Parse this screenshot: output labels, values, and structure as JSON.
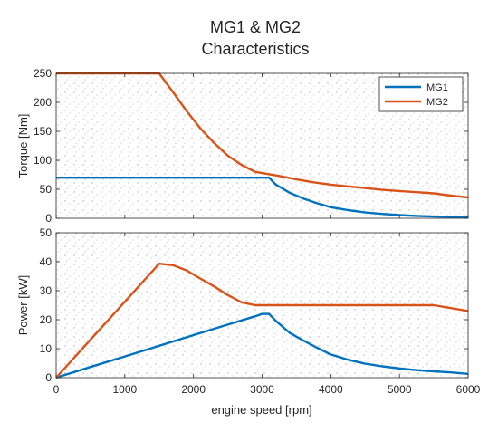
{
  "figure": {
    "title_line1": "MG1 & MG2",
    "title_line2": "Characteristics",
    "xlabel": "engine speed [rpm]"
  },
  "colors": {
    "mg1": "#0072BD",
    "mg2": "#D95319",
    "axis": "#262626",
    "dots": "#a8a8a8"
  },
  "chart_data": [
    {
      "type": "line",
      "ylabel": "Torque [Nm]",
      "xlim": [
        0,
        6000
      ],
      "ylim": [
        0,
        250
      ],
      "yticks": [
        "0",
        "50",
        "100",
        "150",
        "200",
        "250"
      ],
      "xticks": [],
      "legend": "top-right",
      "grid": false,
      "series": [
        {
          "name": "MG1",
          "color": "#0072BD",
          "x": [
            0,
            1000,
            2000,
            3000,
            3100,
            3200,
            3400,
            3600,
            3800,
            4000,
            4250,
            4500,
            4750,
            5000,
            5250,
            5500,
            5750,
            6000
          ],
          "y": [
            70,
            70,
            70,
            70,
            70,
            58,
            44,
            34,
            26,
            19,
            14,
            10,
            7.5,
            5.5,
            4,
            3,
            2.5,
            2
          ]
        },
        {
          "name": "MG2",
          "color": "#D95319",
          "x": [
            0,
            1000,
            1500,
            1700,
            1900,
            2100,
            2300,
            2500,
            2700,
            2900,
            3000,
            3250,
            3500,
            3750,
            4000,
            4250,
            4500,
            4750,
            5000,
            5250,
            5500,
            5750,
            6000
          ],
          "y": [
            250,
            250,
            250,
            218,
            185,
            155,
            130,
            108,
            92,
            80,
            78,
            73,
            67,
            62,
            58,
            55,
            52,
            49,
            47,
            45,
            43,
            39,
            36
          ]
        }
      ]
    },
    {
      "type": "line",
      "ylabel": "Power [kW]",
      "xlabel": "engine speed [rpm]",
      "xlim": [
        0,
        6000
      ],
      "ylim": [
        0,
        50
      ],
      "yticks": [
        "0",
        "10",
        "20",
        "30",
        "40",
        "50"
      ],
      "xticks": [
        "0",
        "1000",
        "2000",
        "3000",
        "4000",
        "5000",
        "6000"
      ],
      "grid": false,
      "series": [
        {
          "name": "MG1",
          "color": "#0072BD",
          "x": [
            0,
            500,
            1000,
            1500,
            2000,
            2500,
            2900,
            3000,
            3100,
            3200,
            3400,
            3600,
            3800,
            4000,
            4250,
            4500,
            4750,
            5000,
            5250,
            5500,
            5750,
            6000
          ],
          "y": [
            0,
            3.7,
            7.3,
            11,
            14.7,
            18.3,
            21.2,
            22,
            22,
            19.6,
            15.5,
            12.8,
            10.3,
            8,
            6.2,
            4.8,
            3.9,
            3.2,
            2.6,
            2.2,
            1.8,
            1.3
          ]
        },
        {
          "name": "MG2",
          "color": "#D95319",
          "x": [
            0,
            500,
            1000,
            1500,
            1700,
            1900,
            2100,
            2300,
            2500,
            2700,
            2900,
            3000,
            3500,
            4000,
            4500,
            5000,
            5500,
            5750,
            6000
          ],
          "y": [
            0,
            13.1,
            26.2,
            39.3,
            38.8,
            37,
            34.2,
            31.5,
            28.5,
            26,
            25,
            25,
            25,
            25,
            25,
            25,
            25,
            24,
            23
          ]
        }
      ]
    }
  ]
}
